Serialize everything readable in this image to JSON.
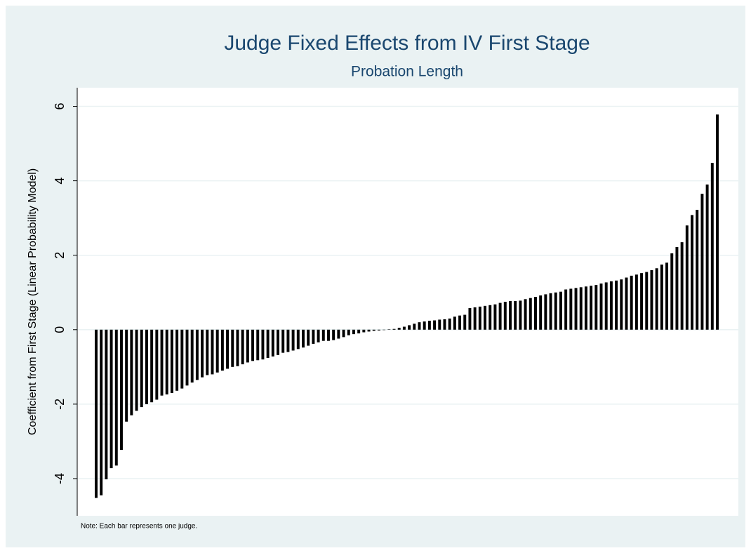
{
  "chart_data": {
    "type": "bar",
    "title": "Judge Fixed Effects from IV First Stage",
    "subtitle": "Probation Length",
    "y_label": "Coefficient from First Stage (Linear Probability Model)",
    "note": "Note: Each bar represents one judge.",
    "color": "#000000",
    "ylim": [
      -5,
      6.5
    ],
    "yticks": [
      -4,
      -2,
      0,
      2,
      4,
      6
    ],
    "grid": true,
    "values": [
      -4.52,
      -4.45,
      -4.02,
      -3.72,
      -3.65,
      -3.23,
      -2.47,
      -2.3,
      -2.18,
      -2.08,
      -2.0,
      -1.95,
      -1.88,
      -1.77,
      -1.74,
      -1.7,
      -1.64,
      -1.58,
      -1.5,
      -1.42,
      -1.35,
      -1.28,
      -1.22,
      -1.2,
      -1.15,
      -1.1,
      -1.05,
      -1.0,
      -0.98,
      -0.93,
      -0.88,
      -0.84,
      -0.82,
      -0.8,
      -0.76,
      -0.72,
      -0.68,
      -0.62,
      -0.6,
      -0.56,
      -0.52,
      -0.48,
      -0.43,
      -0.38,
      -0.34,
      -0.3,
      -0.3,
      -0.28,
      -0.24,
      -0.2,
      -0.15,
      -0.12,
      -0.1,
      -0.07,
      -0.05,
      -0.03,
      -0.02,
      -0.01,
      0.01,
      0.02,
      0.05,
      0.08,
      0.12,
      0.16,
      0.2,
      0.22,
      0.24,
      0.25,
      0.27,
      0.28,
      0.3,
      0.35,
      0.38,
      0.4,
      0.58,
      0.6,
      0.62,
      0.64,
      0.66,
      0.68,
      0.72,
      0.75,
      0.77,
      0.77,
      0.78,
      0.82,
      0.85,
      0.88,
      0.92,
      0.95,
      0.98,
      1.0,
      1.02,
      1.08,
      1.1,
      1.12,
      1.14,
      1.16,
      1.18,
      1.2,
      1.24,
      1.27,
      1.3,
      1.32,
      1.35,
      1.4,
      1.45,
      1.48,
      1.52,
      1.55,
      1.6,
      1.65,
      1.75,
      1.8,
      2.05,
      2.22,
      2.35,
      2.8,
      3.08,
      3.22,
      3.65,
      3.9,
      4.48,
      5.78
    ]
  }
}
